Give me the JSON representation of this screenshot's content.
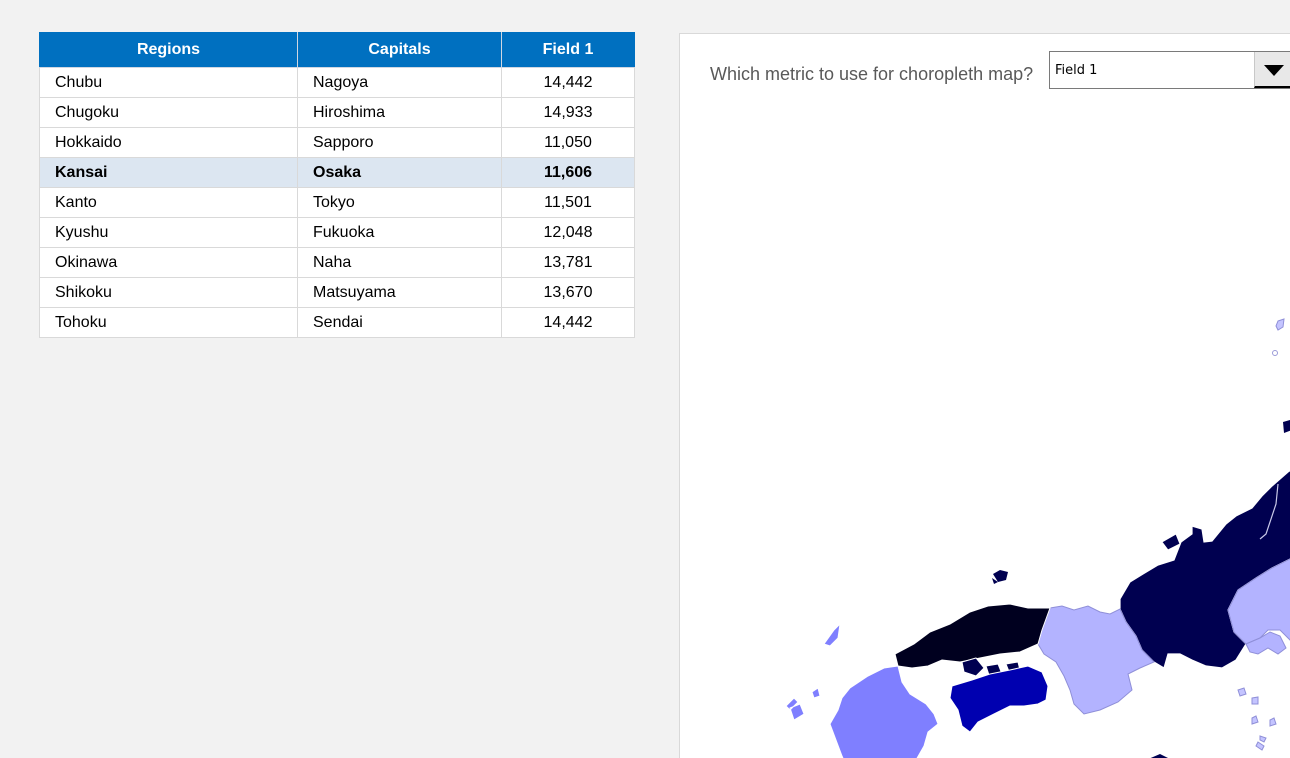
{
  "table": {
    "headers": {
      "region": "Regions",
      "capital": "Capitals",
      "field": "Field 1"
    },
    "selected_row": 3,
    "rows": [
      {
        "region": "Chubu",
        "capital": "Nagoya",
        "field": "14,442"
      },
      {
        "region": "Chugoku",
        "capital": "Hiroshima",
        "field": "14,933"
      },
      {
        "region": "Hokkaido",
        "capital": "Sapporo",
        "field": "11,050"
      },
      {
        "region": "Kansai",
        "capital": "Osaka",
        "field": "11,606"
      },
      {
        "region": "Kanto",
        "capital": "Tokyo",
        "field": "11,501"
      },
      {
        "region": "Kyushu",
        "capital": "Fukuoka",
        "field": "12,048"
      },
      {
        "region": "Okinawa",
        "capital": "Naha",
        "field": "13,781"
      },
      {
        "region": "Shikoku",
        "capital": "Matsuyama",
        "field": "13,670"
      },
      {
        "region": "Tohoku",
        "capital": "Sendai",
        "field": "14,442"
      }
    ]
  },
  "map": {
    "question": "Which metric to use for choropleth map?",
    "selected_metric": "Field 1",
    "colors": {
      "header_blue": "#0070c0",
      "chugoku": "#00001f",
      "chubu": "#000050",
      "shikoku": "#0000b0",
      "kyushu": "#7f7fff",
      "kansai": "#b3b3ff",
      "kanto": "#b3b3ff",
      "islands": "#c4c4ff"
    }
  }
}
